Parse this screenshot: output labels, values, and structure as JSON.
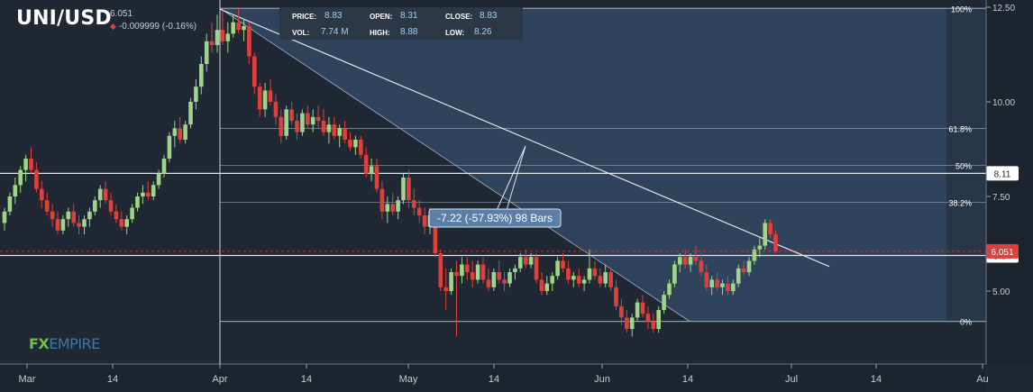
{
  "header": {
    "symbol": "UNI/USD",
    "last_price": "6.051",
    "change": "-0.009999 (-0.16%)",
    "change_direction": "down"
  },
  "ohlc": {
    "price_label": "PRICE:",
    "price": "8.83",
    "open_label": "OPEN:",
    "open": "8.31",
    "close_label": "CLOSE:",
    "close": "8.83",
    "vol_label": "VOL:",
    "vol": "7.74 M",
    "high_label": "HIGH:",
    "high": "8.88",
    "low_label": "LOW:",
    "low": "8.26"
  },
  "logo": {
    "part1": "FX",
    "part2": "EMPIRE"
  },
  "colors": {
    "background": "#1f2833",
    "up": "#9fd48a",
    "down": "#e0403c",
    "fib_fill": "#3d5b7d",
    "line": "#dfe6ee"
  },
  "chart_data": {
    "type": "candlestick",
    "y_axis_ticks": [
      "12.50",
      "10.00",
      "7.50",
      "5.00"
    ],
    "x_axis_ticks": [
      "Mar",
      "14",
      "Apr",
      "14",
      "May",
      "14",
      "Jun",
      "14",
      "Jul",
      "14",
      "Au"
    ],
    "ylim": [
      2.5,
      12.5
    ],
    "fibonacci": [
      {
        "label": "100%",
        "value": 12.47
      },
      {
        "label": "61.8%",
        "value": 9.3
      },
      {
        "label": "50%",
        "value": 8.32
      },
      {
        "label": "38.2%",
        "value": 7.35
      },
      {
        "label": "0%",
        "value": 4.2
      }
    ],
    "horizontal_levels": [
      {
        "value": 8.11,
        "label": "8.11"
      },
      {
        "value": 5.94,
        "label": "5.94"
      }
    ],
    "current_price": {
      "value": 6.051,
      "label": "6.051"
    },
    "measure_label": "-7.22 (-57.93%) 98 Bars",
    "candles": [
      [
        6.8,
        7.2,
        6.6,
        7.1
      ],
      [
        7.1,
        7.6,
        7.0,
        7.5
      ],
      [
        7.5,
        8.0,
        7.3,
        7.8
      ],
      [
        7.8,
        8.3,
        7.6,
        8.2
      ],
      [
        8.2,
        8.6,
        7.9,
        8.5
      ],
      [
        8.5,
        8.8,
        8.1,
        8.2
      ],
      [
        8.2,
        8.4,
        7.6,
        7.7
      ],
      [
        7.7,
        7.9,
        7.2,
        7.4
      ],
      [
        7.4,
        7.6,
        7.0,
        7.1
      ],
      [
        7.1,
        7.3,
        6.7,
        6.9
      ],
      [
        6.9,
        7.1,
        6.5,
        6.6
      ],
      [
        6.6,
        7.0,
        6.5,
        6.9
      ],
      [
        6.9,
        7.2,
        6.7,
        7.1
      ],
      [
        7.1,
        7.3,
        6.7,
        6.8
      ],
      [
        6.8,
        7.0,
        6.5,
        6.7
      ],
      [
        6.7,
        7.0,
        6.5,
        6.9
      ],
      [
        6.9,
        7.2,
        6.7,
        7.1
      ],
      [
        7.1,
        7.5,
        7.0,
        7.4
      ],
      [
        7.4,
        7.8,
        7.2,
        7.7
      ],
      [
        7.7,
        7.9,
        7.3,
        7.4
      ],
      [
        7.4,
        7.6,
        7.0,
        7.1
      ],
      [
        7.1,
        7.3,
        6.8,
        6.9
      ],
      [
        6.9,
        7.1,
        6.6,
        6.7
      ],
      [
        6.7,
        7.0,
        6.5,
        6.9
      ],
      [
        6.9,
        7.3,
        6.8,
        7.2
      ],
      [
        7.2,
        7.6,
        7.1,
        7.5
      ],
      [
        7.5,
        7.8,
        7.3,
        7.6
      ],
      [
        7.6,
        7.9,
        7.4,
        7.5
      ],
      [
        7.5,
        7.9,
        7.4,
        7.8
      ],
      [
        7.8,
        8.2,
        7.7,
        8.1
      ],
      [
        8.1,
        8.6,
        8.0,
        8.5
      ],
      [
        8.5,
        9.2,
        8.4,
        9.1
      ],
      [
        9.1,
        9.5,
        8.8,
        9.3
      ],
      [
        9.3,
        9.6,
        8.9,
        9.0
      ],
      [
        9.0,
        9.5,
        8.9,
        9.4
      ],
      [
        9.4,
        10.1,
        9.3,
        10.0
      ],
      [
        10.0,
        10.6,
        9.8,
        10.4
      ],
      [
        10.4,
        11.2,
        10.2,
        11.0
      ],
      [
        11.0,
        11.8,
        10.8,
        11.6
      ],
      [
        11.6,
        12.1,
        11.3,
        11.5
      ],
      [
        11.5,
        12.3,
        11.3,
        11.9
      ],
      [
        11.9,
        12.4,
        11.5,
        11.6
      ],
      [
        11.6,
        12.1,
        11.3,
        11.8
      ],
      [
        11.8,
        12.3,
        11.7,
        12.1
      ],
      [
        12.1,
        12.5,
        11.8,
        11.9
      ],
      [
        11.9,
        12.2,
        11.6,
        12.0
      ],
      [
        12.0,
        12.1,
        11.0,
        11.2
      ],
      [
        11.2,
        11.3,
        10.2,
        10.4
      ],
      [
        10.4,
        10.5,
        9.6,
        9.8
      ],
      [
        9.8,
        10.5,
        9.6,
        10.3
      ],
      [
        10.3,
        10.6,
        9.9,
        10.0
      ],
      [
        10.0,
        10.2,
        9.4,
        9.6
      ],
      [
        9.6,
        9.8,
        8.9,
        9.1
      ],
      [
        9.1,
        9.9,
        9.0,
        9.8
      ],
      [
        9.8,
        10.0,
        9.4,
        9.5
      ],
      [
        9.5,
        9.7,
        9.0,
        9.2
      ],
      [
        9.2,
        9.8,
        9.1,
        9.7
      ],
      [
        9.7,
        9.9,
        9.3,
        9.4
      ],
      [
        9.4,
        9.8,
        9.2,
        9.6
      ],
      [
        9.6,
        9.9,
        9.3,
        9.5
      ],
      [
        9.5,
        9.8,
        9.1,
        9.2
      ],
      [
        9.2,
        9.6,
        8.9,
        9.4
      ],
      [
        9.4,
        9.6,
        9.0,
        9.1
      ],
      [
        9.1,
        9.4,
        8.8,
        9.3
      ],
      [
        9.3,
        9.5,
        8.9,
        9.0
      ],
      [
        9.0,
        9.2,
        8.7,
        8.8
      ],
      [
        8.8,
        9.1,
        8.6,
        9.0
      ],
      [
        9.0,
        9.1,
        8.5,
        8.6
      ],
      [
        8.6,
        8.8,
        8.0,
        8.1
      ],
      [
        8.1,
        8.5,
        7.9,
        8.3
      ],
      [
        8.3,
        8.5,
        7.6,
        7.7
      ],
      [
        7.7,
        7.9,
        6.9,
        7.1
      ],
      [
        7.1,
        7.5,
        6.8,
        7.3
      ],
      [
        7.3,
        7.6,
        7.0,
        7.1
      ],
      [
        7.1,
        7.5,
        6.9,
        7.4
      ],
      [
        7.4,
        8.1,
        7.3,
        8.0
      ],
      [
        8.0,
        8.2,
        7.2,
        7.4
      ],
      [
        7.4,
        7.7,
        7.0,
        7.2
      ],
      [
        7.2,
        7.4,
        6.8,
        7.0
      ],
      [
        7.0,
        7.2,
        6.5,
        6.7
      ],
      [
        6.7,
        7.2,
        6.5,
        7.0
      ],
      [
        7.0,
        7.1,
        5.9,
        6.0
      ],
      [
        6.0,
        6.1,
        5.0,
        5.1
      ],
      [
        5.1,
        5.6,
        4.5,
        5.0
      ],
      [
        5.0,
        5.6,
        4.9,
        5.5
      ],
      [
        5.5,
        5.8,
        3.8,
        5.4
      ],
      [
        5.4,
        5.9,
        5.2,
        5.7
      ],
      [
        5.7,
        5.9,
        5.3,
        5.5
      ],
      [
        5.5,
        5.8,
        5.1,
        5.3
      ],
      [
        5.3,
        5.8,
        5.2,
        5.7
      ],
      [
        5.7,
        5.9,
        5.2,
        5.3
      ],
      [
        5.3,
        5.6,
        5.0,
        5.1
      ],
      [
        5.1,
        5.6,
        5.0,
        5.5
      ],
      [
        5.5,
        5.8,
        5.2,
        5.3
      ],
      [
        5.3,
        5.5,
        5.0,
        5.2
      ],
      [
        5.2,
        5.6,
        5.1,
        5.5
      ],
      [
        5.5,
        5.7,
        5.3,
        5.6
      ],
      [
        5.6,
        6.0,
        5.5,
        5.9
      ],
      [
        5.9,
        6.1,
        5.6,
        5.7
      ],
      [
        5.7,
        6.0,
        5.6,
        5.9
      ],
      [
        5.9,
        6.0,
        5.2,
        5.3
      ],
      [
        5.3,
        5.5,
        4.9,
        5.0
      ],
      [
        5.0,
        5.4,
        4.9,
        5.2
      ],
      [
        5.2,
        5.5,
        5.0,
        5.4
      ],
      [
        5.4,
        5.9,
        5.3,
        5.8
      ],
      [
        5.8,
        6.0,
        5.5,
        5.6
      ],
      [
        5.6,
        5.8,
        5.2,
        5.3
      ],
      [
        5.3,
        5.5,
        5.1,
        5.4
      ],
      [
        5.4,
        5.6,
        5.1,
        5.2
      ],
      [
        5.2,
        5.4,
        5.0,
        5.3
      ],
      [
        5.3,
        6.1,
        5.2,
        5.6
      ],
      [
        5.6,
        5.8,
        5.3,
        5.4
      ],
      [
        5.4,
        5.6,
        5.1,
        5.2
      ],
      [
        5.2,
        5.7,
        5.1,
        5.5
      ],
      [
        5.5,
        5.6,
        5.0,
        5.1
      ],
      [
        5.1,
        5.3,
        4.5,
        4.6
      ],
      [
        4.6,
        4.8,
        4.1,
        4.3
      ],
      [
        4.3,
        4.5,
        3.9,
        4.0
      ],
      [
        4.0,
        4.4,
        3.8,
        4.3
      ],
      [
        4.3,
        4.8,
        4.2,
        4.7
      ],
      [
        4.7,
        4.9,
        4.3,
        4.4
      ],
      [
        4.4,
        4.6,
        4.0,
        4.2
      ],
      [
        4.2,
        4.4,
        3.9,
        4.0
      ],
      [
        4.0,
        4.6,
        3.9,
        4.5
      ],
      [
        4.5,
        5.0,
        4.4,
        4.9
      ],
      [
        4.9,
        5.3,
        4.8,
        5.2
      ],
      [
        5.2,
        5.8,
        5.1,
        5.7
      ],
      [
        5.7,
        6.0,
        5.5,
        5.9
      ],
      [
        5.9,
        6.1,
        5.6,
        5.7
      ],
      [
        5.7,
        6.0,
        5.5,
        5.9
      ],
      [
        5.9,
        6.2,
        5.7,
        5.8
      ],
      [
        5.8,
        6.0,
        5.4,
        5.5
      ],
      [
        5.5,
        5.7,
        5.0,
        5.1
      ],
      [
        5.1,
        5.4,
        4.9,
        5.3
      ],
      [
        5.3,
        5.5,
        5.0,
        5.1
      ],
      [
        5.1,
        5.3,
        4.9,
        5.2
      ],
      [
        5.2,
        5.4,
        4.9,
        5.0
      ],
      [
        5.0,
        5.3,
        4.9,
        5.2
      ],
      [
        5.2,
        5.7,
        5.1,
        5.6
      ],
      [
        5.6,
        5.8,
        5.4,
        5.5
      ],
      [
        5.5,
        5.9,
        5.4,
        5.8
      ],
      [
        5.8,
        6.2,
        5.7,
        6.1
      ],
      [
        6.1,
        6.4,
        5.9,
        6.2
      ],
      [
        6.2,
        6.9,
        6.1,
        6.8
      ],
      [
        6.8,
        6.9,
        6.4,
        6.5
      ],
      [
        6.5,
        6.6,
        6.0,
        6.05
      ]
    ]
  }
}
